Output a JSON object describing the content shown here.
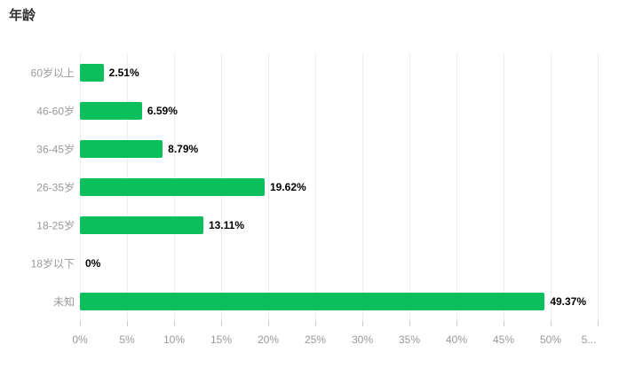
{
  "page": {
    "title": "年龄"
  },
  "chart_data": {
    "type": "bar",
    "orientation": "horizontal",
    "title": "年龄",
    "categories": [
      "60岁以上",
      "46-60岁",
      "36-45岁",
      "26-35岁",
      "18-25岁",
      "18岁以下",
      "未知"
    ],
    "values": [
      2.51,
      6.59,
      8.79,
      19.62,
      13.11,
      0,
      49.37
    ],
    "value_labels": [
      "2.51%",
      "6.59%",
      "8.79%",
      "19.62%",
      "13.11%",
      "0%",
      "49.37%"
    ],
    "xlabel": "",
    "ylabel": "",
    "xlim": [
      0,
      55
    ],
    "x_tick_values": [
      0,
      5,
      10,
      15,
      20,
      25,
      30,
      35,
      40,
      45,
      50,
      55
    ],
    "x_tick_labels": [
      "0%",
      "5%",
      "10%",
      "15%",
      "20%",
      "25%",
      "30%",
      "35%",
      "40%",
      "45%",
      "50%",
      "5..."
    ],
    "grid": true,
    "legend": false
  },
  "colors": {
    "bar": "#0abf5c",
    "gridline": "#eeeeee",
    "tick": "#cccccc",
    "title": "#333333",
    "category_label": "#999999",
    "axis_label": "#999999",
    "value_label": "#000000"
  }
}
